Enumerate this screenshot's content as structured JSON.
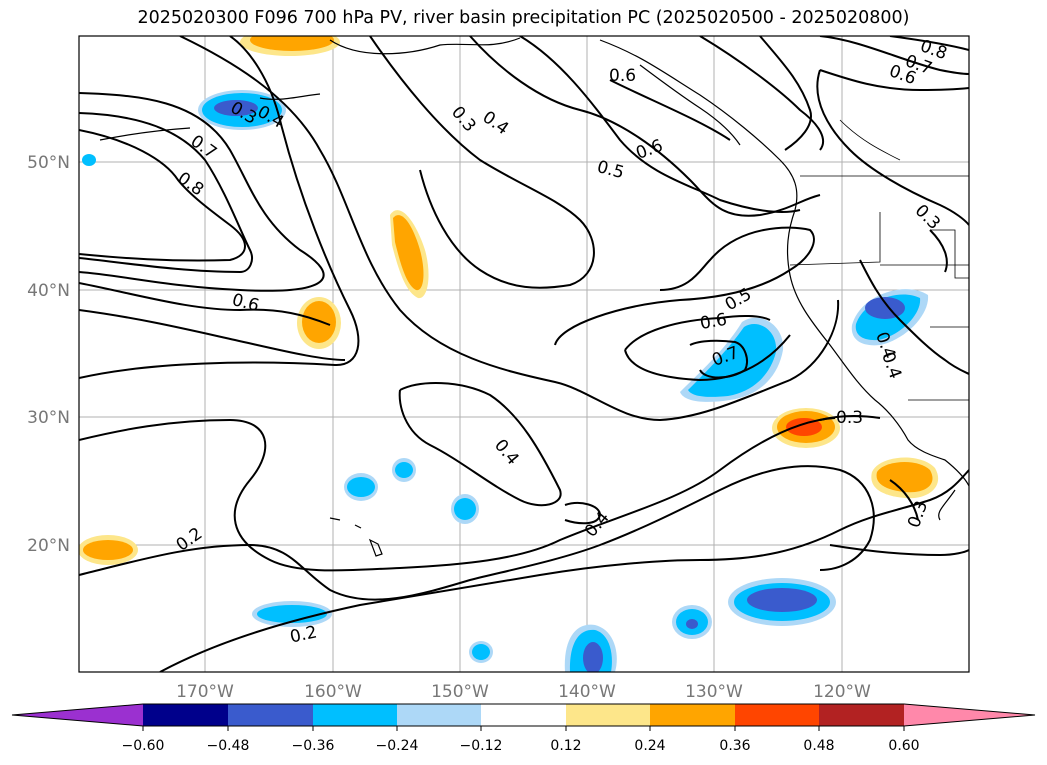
{
  "title": "2025020300 F096 700 hPa PV, river basin precipitation PC (2025020500 - 2025020800)",
  "axes": {
    "lon_labels": [
      "170°W",
      "160°W",
      "150°W",
      "140°W",
      "130°W",
      "120°W"
    ],
    "lat_labels": [
      "50°N",
      "40°N",
      "30°N",
      "20°N"
    ]
  },
  "contour_labels": [
    "0.8",
    "0.7",
    "0.6",
    "0.6",
    "0.5",
    "0.4",
    "0.3",
    "0.4",
    "0.7",
    "0.8",
    "0.6",
    "0.6",
    "0.5",
    "0.6",
    "0.7",
    "0.4",
    "0.4",
    "0.4",
    "0.2",
    "0.2",
    "0.3",
    "0.3",
    "0.3",
    "0.3",
    "0.4"
  ],
  "colorbar": {
    "ticks": [
      "−0.60",
      "−0.48",
      "−0.36",
      "−0.24",
      "−0.12",
      "0.12",
      "0.24",
      "0.36",
      "0.48",
      "0.60"
    ],
    "colors": [
      "#9b30d0",
      "#00008b",
      "#3a5bcd",
      "#00bfff",
      "#add8f7",
      "#ffffff",
      "#fde68a",
      "#ffa500",
      "#ff4500",
      "#b22222",
      "#ff88aa"
    ]
  }
}
